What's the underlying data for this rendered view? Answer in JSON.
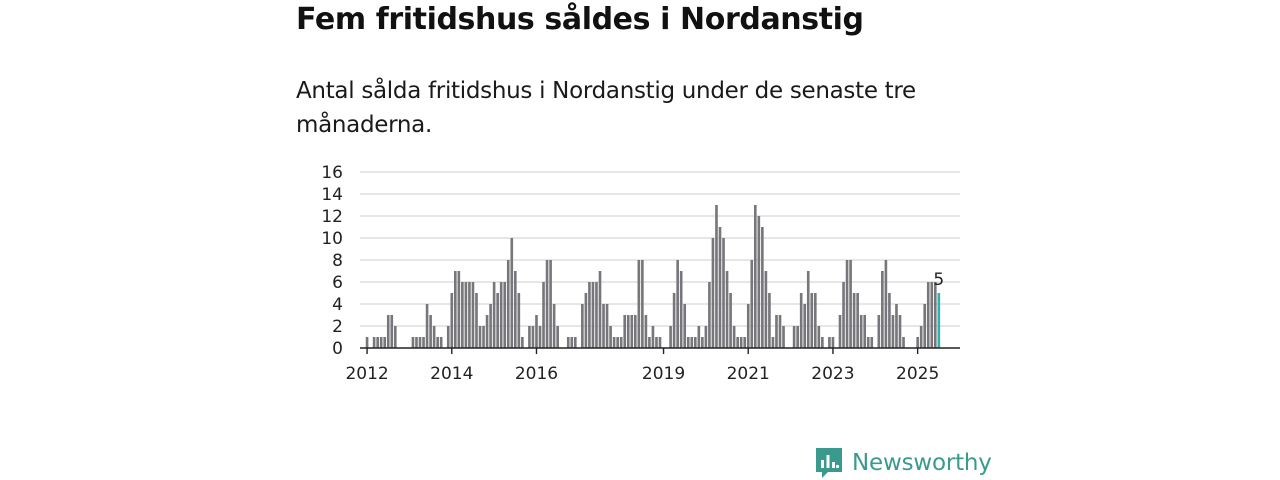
{
  "header": {
    "title": "Fem fritidshus såldes i Nordanstig",
    "subtitle": "Antal sålda fritidshus i Nordanstig under de senaste tre månaderna."
  },
  "brand": {
    "name": "Newsworthy",
    "color": "#3a9a8e",
    "icon": "newsworthy-chart-icon"
  },
  "colors": {
    "bar": "#77767b",
    "highlight": "#2bb3b0",
    "grid": "#d8d8d8",
    "axis": "#222222"
  },
  "chart_data": {
    "type": "bar",
    "title": "Fem fritidshus såldes i Nordanstig",
    "ylabel": "",
    "xlabel": "",
    "ylim": [
      0,
      16
    ],
    "yticks": [
      0,
      2,
      4,
      6,
      8,
      10,
      12,
      14,
      16
    ],
    "grid": true,
    "xlim": [
      2011.833,
      2026.0
    ],
    "xticks": [
      {
        "label": "2012",
        "value": 2012.0
      },
      {
        "label": "2014",
        "value": 2014.0
      },
      {
        "label": "2016",
        "value": 2016.0
      },
      {
        "label": "2019",
        "value": 2019.0
      },
      {
        "label": "2021",
        "value": 2021.0
      },
      {
        "label": "2023",
        "value": 2023.0
      },
      {
        "label": "2025",
        "value": 2025.0
      }
    ],
    "start": [
      2012,
      1
    ],
    "frequency": "monthly",
    "series": [
      {
        "name": "Antal sålda fritidshus (rullande tre månader)",
        "values": [
          1,
          0,
          1,
          1,
          1,
          1,
          3,
          3,
          2,
          0,
          0,
          0,
          0,
          1,
          1,
          1,
          1,
          4,
          3,
          2,
          1,
          1,
          0,
          2,
          5,
          7,
          7,
          6,
          6,
          6,
          6,
          5,
          2,
          2,
          3,
          4,
          6,
          5,
          6,
          6,
          8,
          10,
          7,
          5,
          1,
          0,
          2,
          2,
          3,
          2,
          6,
          8,
          8,
          4,
          2,
          0,
          0,
          1,
          1,
          1,
          0,
          4,
          5,
          6,
          6,
          6,
          7,
          4,
          4,
          2,
          1,
          1,
          1,
          3,
          3,
          3,
          3,
          8,
          8,
          3,
          1,
          2,
          1,
          1,
          0,
          0,
          2,
          5,
          8,
          7,
          4,
          1,
          1,
          1,
          2,
          1,
          2,
          6,
          10,
          13,
          11,
          10,
          7,
          5,
          2,
          1,
          1,
          1,
          4,
          8,
          13,
          12,
          11,
          7,
          5,
          1,
          3,
          3,
          2,
          0,
          0,
          2,
          2,
          5,
          4,
          7,
          5,
          5,
          2,
          1,
          0,
          1,
          1,
          0,
          3,
          6,
          8,
          8,
          5,
          5,
          3,
          3,
          1,
          1,
          0,
          3,
          7,
          8,
          5,
          3,
          4,
          3,
          1,
          0,
          0,
          0,
          1,
          2,
          4,
          6,
          6,
          6,
          5
        ]
      }
    ],
    "annotations": [
      {
        "text": "5",
        "x": "last",
        "value": 5
      }
    ]
  }
}
